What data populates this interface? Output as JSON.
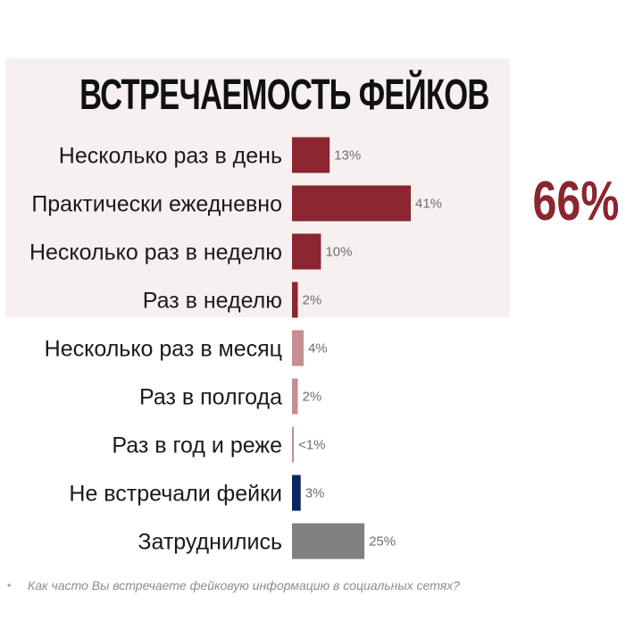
{
  "chart_data": {
    "type": "bar",
    "orientation": "horizontal",
    "title": "ВСТРЕЧАЕМОСТЬ ФЕЙКОВ",
    "categories": [
      "Несколько раз в день",
      "Практически ежедневно",
      "Несколько раз в неделю",
      "Раз в неделю",
      "Несколько раз в месяц",
      "Раз в полгода",
      "Раз в год и реже",
      "Не встречали фейки",
      "Затруднились"
    ],
    "values": [
      13,
      41,
      10,
      2,
      4,
      2,
      0.5,
      3,
      25
    ],
    "value_labels": [
      "13%",
      "41%",
      "10%",
      "2%",
      "4%",
      "2%",
      "<1%",
      "3%",
      "25%"
    ],
    "bar_colors": [
      "#8b2530",
      "#8b2530",
      "#8b2530",
      "#8b2530",
      "#c58f93",
      "#c58f93",
      "#c58f93",
      "#0d2561",
      "#808080"
    ],
    "highlight_group": {
      "categories_count": 4,
      "total_label": "66%",
      "panel_color": "#f6f1f0",
      "total_color": "#8b2530"
    },
    "xlim": [
      0,
      41
    ],
    "grid": false,
    "legend": "none",
    "xlabel": "",
    "ylabel": ""
  },
  "footnote": {
    "bullet": "•",
    "text": "Как часто Вы встречаете фейковую информацию в социальных сетях?"
  }
}
